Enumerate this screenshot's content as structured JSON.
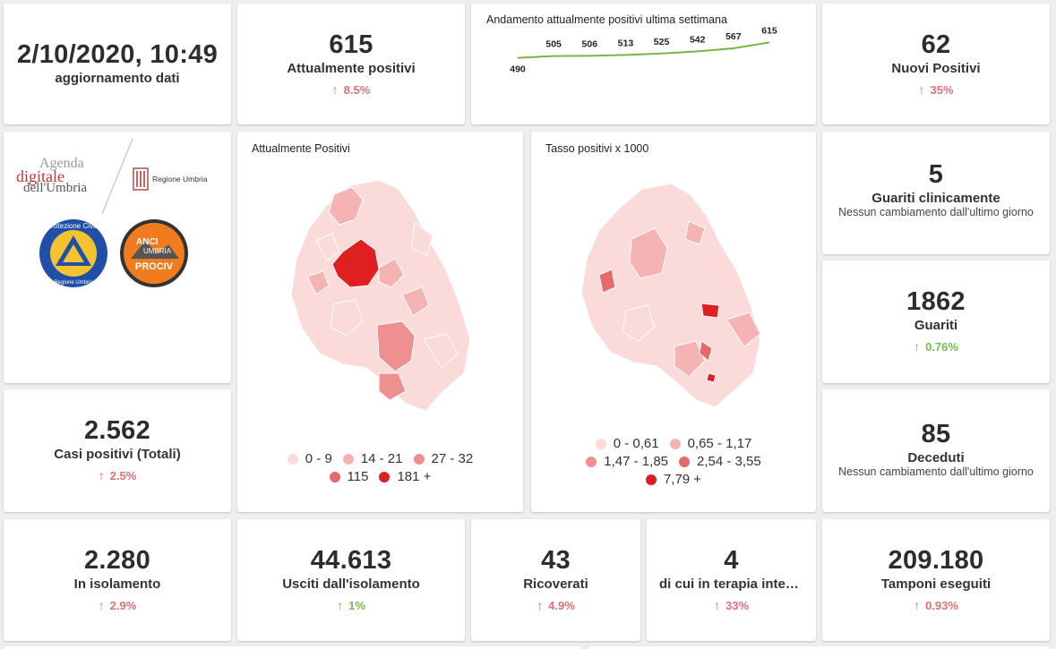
{
  "header": {
    "updated_value": "2/10/2020, 10:49",
    "updated_label": "aggiornamento dati"
  },
  "kpis": {
    "attualmente_positivi": {
      "value": "615",
      "label": "Attualmente positivi",
      "delta": "8.5%",
      "trend": "up"
    },
    "nuovi_positivi": {
      "value": "62",
      "label": "Nuovi Positivi",
      "delta": "35%",
      "trend": "up"
    },
    "guariti_clinicamente": {
      "value": "5",
      "label": "Guariti clinicamente",
      "sub": "Nessun cambiamento dall'ultimo giorno"
    },
    "guariti": {
      "value": "1862",
      "label": "Guariti",
      "delta": "0.76%",
      "trend": "up"
    },
    "deceduti": {
      "value": "85",
      "label": "Deceduti",
      "sub": "Nessun cambiamento dall'ultimo giorno"
    },
    "casi_totali": {
      "value": "2.562",
      "label": "Casi positivi (Totali)",
      "delta": "2.5%",
      "trend": "up"
    },
    "isolamento": {
      "value": "2.280",
      "label": "In isolamento",
      "delta": "2.9%",
      "trend": "up"
    },
    "usciti": {
      "value": "44.613",
      "label": "Usciti dall'isolamento",
      "delta": "1%",
      "trend": "up"
    },
    "ricoverati": {
      "value": "43",
      "label": "Ricoverati",
      "delta": "4.9%",
      "trend": "up"
    },
    "terapia": {
      "value": "4",
      "label": "di cui in terapia intensiva",
      "delta": "33%",
      "trend": "up"
    },
    "tamponi": {
      "value": "209.180",
      "label": "Tamponi eseguiti",
      "delta": "0.93%",
      "trend": "up"
    }
  },
  "colors": {
    "red": "#e0707a",
    "green": "#6fbf4a",
    "spark": "#7cb342"
  },
  "logos": {
    "agenda_line1": "Agenda",
    "agenda_line2": "digitale",
    "agenda_line3": "dell'Umbria",
    "regione": "Regione Umbria",
    "protezione": "Protezione Civile",
    "protezione_sub": "Regione Umbria",
    "anci_1": "ANCI",
    "anci_2": "UMBRIA",
    "anci_3": "PROCIV"
  },
  "map1": {
    "title": "Attualmente Positivi",
    "legend": [
      {
        "label": "0 - 9",
        "color": "#fbdada"
      },
      {
        "label": "14 - 21",
        "color": "#f5b3b3"
      },
      {
        "label": "27 - 32",
        "color": "#ee9090"
      },
      {
        "label": "115",
        "color": "#e66a6a"
      },
      {
        "label": "181 +",
        "color": "#e02020"
      }
    ]
  },
  "map2": {
    "title": "Tasso positivi x 1000",
    "legend": [
      {
        "label": "0 - 0,61",
        "color": "#fbdada"
      },
      {
        "label": "0,65 - 1,17",
        "color": "#f5b3b3"
      },
      {
        "label": "1,47 - 1,85",
        "color": "#ee9090"
      },
      {
        "label": "2,54 - 3,55",
        "color": "#e66a6a"
      },
      {
        "label": "7,79 +",
        "color": "#e02020"
      }
    ]
  },
  "chart_data": {
    "type": "line",
    "title": "Andamento attualmente positivi ultima settimana",
    "values": [
      490,
      505,
      506,
      513,
      525,
      542,
      567,
      615
    ],
    "ylim": [
      480,
      625
    ]
  }
}
